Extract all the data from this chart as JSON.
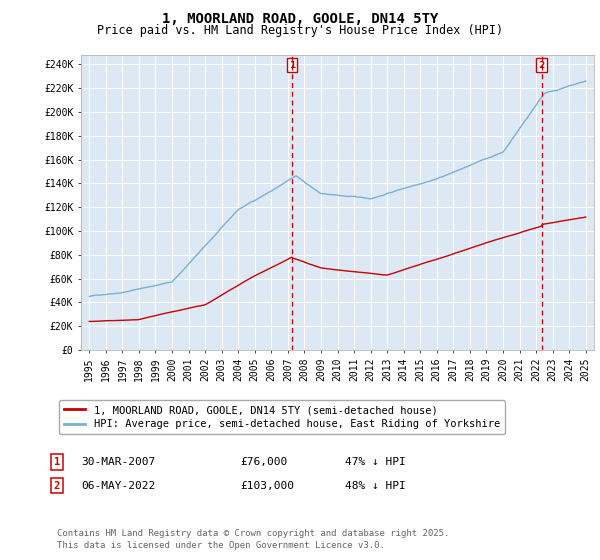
{
  "title": "1, MOORLAND ROAD, GOOLE, DN14 5TY",
  "subtitle": "Price paid vs. HM Land Registry's House Price Index (HPI)",
  "ylabel_ticks": [
    0,
    20000,
    40000,
    60000,
    80000,
    100000,
    120000,
    140000,
    160000,
    180000,
    200000,
    220000,
    240000
  ],
  "ylabel_labels": [
    "£0",
    "£20K",
    "£40K",
    "£60K",
    "£80K",
    "£100K",
    "£120K",
    "£140K",
    "£160K",
    "£180K",
    "£200K",
    "£220K",
    "£240K"
  ],
  "xlim": [
    1994.5,
    2025.5
  ],
  "ylim": [
    0,
    248000
  ],
  "plot_bg_color": "#dce9f5",
  "grid_color": "#ffffff",
  "line_red_color": "#cc0000",
  "line_blue_color": "#7ab0d4",
  "vline_color": "#cc0000",
  "marker1_year": 2007.25,
  "marker2_year": 2022.35,
  "transaction1": {
    "label": "1",
    "date": "30-MAR-2007",
    "price": "£76,000",
    "hpi": "47% ↓ HPI"
  },
  "transaction2": {
    "label": "2",
    "date": "06-MAY-2022",
    "price": "£103,000",
    "hpi": "48% ↓ HPI"
  },
  "legend_entry1": "1, MOORLAND ROAD, GOOLE, DN14 5TY (semi-detached house)",
  "legend_entry2": "HPI: Average price, semi-detached house, East Riding of Yorkshire",
  "footnote": "Contains HM Land Registry data © Crown copyright and database right 2025.\nThis data is licensed under the Open Government Licence v3.0.",
  "title_fontsize": 10,
  "subtitle_fontsize": 8.5,
  "axis_fontsize": 7,
  "legend_fontsize": 7.5,
  "table_fontsize": 8,
  "footnote_fontsize": 6.5
}
